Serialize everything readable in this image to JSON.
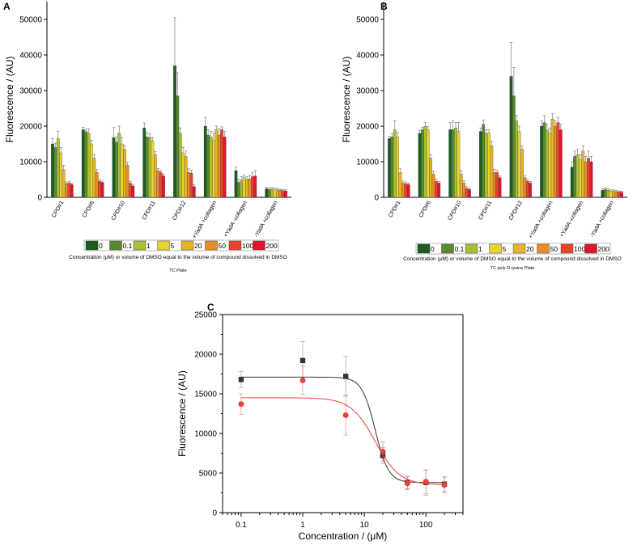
{
  "colors": {
    "levels": [
      "#1b5e20",
      "#5a8a2e",
      "#a8c032",
      "#e9d531",
      "#e8b22a",
      "#e98d25",
      "#e8452c",
      "#e0142f"
    ],
    "axis": "#000000",
    "errorbar": "#7f7f7f",
    "fitBlack": "#333333",
    "fitRed": "#e8413a"
  },
  "chart_data": [
    {
      "panel": "A",
      "type": "bar",
      "subtitle": "TC Plate",
      "xlabel": "Concentration (μM) or volume of DMSO equal to the volume of compound dissolved in DMSO",
      "ylabel": "Fluorescence / (AU)",
      "ylim": [
        0,
        55000
      ],
      "yticks": [
        0,
        10000,
        20000,
        30000,
        40000,
        50000
      ],
      "legend": [
        "0",
        "0.1",
        "1",
        "5",
        "20",
        "50",
        "100",
        "200"
      ],
      "categories": [
        "CPD#1",
        "CPD#6",
        "CPD#10",
        "CPD#11",
        "CPD#12",
        "+YadA +collagen",
        "+YadA -collagen",
        "-YadA +collagen"
      ],
      "values": [
        [
          15000,
          14000,
          16500,
          12500,
          7800,
          3800,
          4000,
          3600
        ],
        [
          19000,
          18500,
          18000,
          15000,
          11000,
          7000,
          4500,
          4200
        ],
        [
          16800,
          15500,
          18000,
          15000,
          13500,
          9000,
          4000,
          3200
        ],
        [
          19500,
          17000,
          16800,
          15800,
          12000,
          7500,
          7000,
          6000
        ],
        [
          37000,
          28500,
          18000,
          12500,
          11500,
          7000,
          6800,
          3000
        ],
        [
          20000,
          17500,
          17000,
          16000,
          19000,
          17500,
          19000,
          17000
        ],
        [
          7500,
          4200,
          4800,
          5500,
          5000,
          5200,
          5800,
          6000
        ],
        [
          2400,
          2200,
          2300,
          2200,
          2100,
          2000,
          1900,
          1800
        ]
      ],
      "errors": [
        [
          1500,
          1200,
          2000,
          1500,
          1200,
          500,
          500,
          400
        ],
        [
          700,
          600,
          1200,
          1000,
          1000,
          800,
          500,
          400
        ],
        [
          2800,
          1500,
          2000,
          1800,
          1000,
          800,
          500,
          400
        ],
        [
          1400,
          1200,
          1000,
          1000,
          800,
          600,
          500,
          500
        ],
        [
          13500,
          6500,
          1500,
          1500,
          1500,
          1000,
          800,
          500
        ],
        [
          2500,
          1500,
          1500,
          2000,
          1000,
          1800,
          800,
          1500
        ],
        [
          1000,
          800,
          1000,
          800,
          800,
          1000,
          1200,
          1500
        ],
        [
          400,
          400,
          400,
          400,
          400,
          300,
          300,
          300
        ]
      ]
    },
    {
      "panel": "B",
      "type": "bar",
      "subtitle": "TC poly-D-lysine Plate",
      "xlabel": "Concentration (μM) or volume of DMSO equal to the volume of compound dissolved in DMSO",
      "ylabel": "Fluorescence / (AU)",
      "ylim": [
        0,
        55000
      ],
      "yticks": [
        0,
        10000,
        20000,
        30000,
        40000,
        50000
      ],
      "legend": [
        "0",
        "0.1",
        "1",
        "5",
        "20",
        "50",
        "100",
        "200"
      ],
      "categories": [
        "CPD#1",
        "CPD#6",
        "CPD#10",
        "CPD#11",
        "CPD#12",
        "+YadA +collagen",
        "+YadA -collagen",
        "-YadA +collagen"
      ],
      "values": [
        [
          16500,
          17000,
          19000,
          17000,
          7000,
          4000,
          3800,
          3600
        ],
        [
          18000,
          19000,
          20000,
          19000,
          11000,
          6500,
          4500,
          4000
        ],
        [
          19000,
          19000,
          19500,
          18500,
          6500,
          4000,
          2500,
          2200
        ],
        [
          18500,
          20500,
          18000,
          18000,
          14500,
          7000,
          7000,
          5500
        ],
        [
          34000,
          28500,
          21500,
          18500,
          13500,
          5500,
          4500,
          4000
        ],
        [
          20000,
          21000,
          19000,
          18000,
          22000,
          20000,
          21000,
          19000
        ],
        [
          8500,
          11500,
          12000,
          10500,
          13000,
          10000,
          11000,
          10000
        ],
        [
          2000,
          2200,
          2000,
          1800,
          1800,
          1600,
          1500,
          1400
        ]
      ],
      "errors": [
        [
          700,
          800,
          2500,
          1200,
          1000,
          600,
          500,
          400
        ],
        [
          800,
          600,
          1000,
          800,
          1000,
          800,
          600,
          500
        ],
        [
          2000,
          2500,
          1500,
          2500,
          1000,
          600,
          500,
          400
        ],
        [
          1000,
          1200,
          1000,
          1000,
          1200,
          800,
          600,
          500
        ],
        [
          9500,
          8000,
          1500,
          1500,
          1000,
          500,
          500,
          500
        ],
        [
          1500,
          2000,
          1500,
          1500,
          1500,
          1500,
          1500,
          1500
        ],
        [
          1500,
          1500,
          1500,
          1500,
          1500,
          1500,
          2000,
          1500
        ],
        [
          400,
          400,
          400,
          300,
          300,
          300,
          300,
          300
        ]
      ]
    },
    {
      "panel": "C",
      "type": "scatter",
      "xscale": "log",
      "xlabel": "Concentration / (μM)",
      "ylabel": "Fluorescence / (AU)",
      "xlim": [
        0.05,
        400
      ],
      "ylim": [
        0,
        25000
      ],
      "xticks": [
        0.1,
        1,
        10,
        100
      ],
      "xtick_labels": [
        "0.1",
        "1",
        "10",
        "100"
      ],
      "yticks": [
        0,
        5000,
        10000,
        15000,
        20000,
        25000
      ],
      "series": [
        {
          "name": "black",
          "marker": "square",
          "color": "#333333",
          "x": [
            0.1,
            1,
            5,
            20,
            50,
            100,
            200
          ],
          "y": [
            16800,
            19200,
            17200,
            7200,
            3800,
            3800,
            3600
          ],
          "err": [
            1000,
            2400,
            2500,
            1000,
            800,
            1600,
            900
          ],
          "fit": {
            "top": 17100,
            "bottom": 3800,
            "ec50": 15,
            "hill": 4
          }
        },
        {
          "name": "red",
          "marker": "circle",
          "color": "#e8413a",
          "x": [
            0.1,
            1,
            5,
            20,
            50,
            100,
            200
          ],
          "y": [
            13700,
            16700,
            12300,
            7700,
            3700,
            3900,
            3500
          ],
          "err": [
            1300,
            1800,
            2500,
            1200,
            800,
            1500,
            1000
          ],
          "fit": {
            "top": 14500,
            "bottom": 3500,
            "ec50": 15,
            "hill": 2.2
          }
        }
      ]
    }
  ],
  "panels": {
    "A": {
      "label": "A"
    },
    "B": {
      "label": "B"
    },
    "C": {
      "label": "C"
    }
  }
}
